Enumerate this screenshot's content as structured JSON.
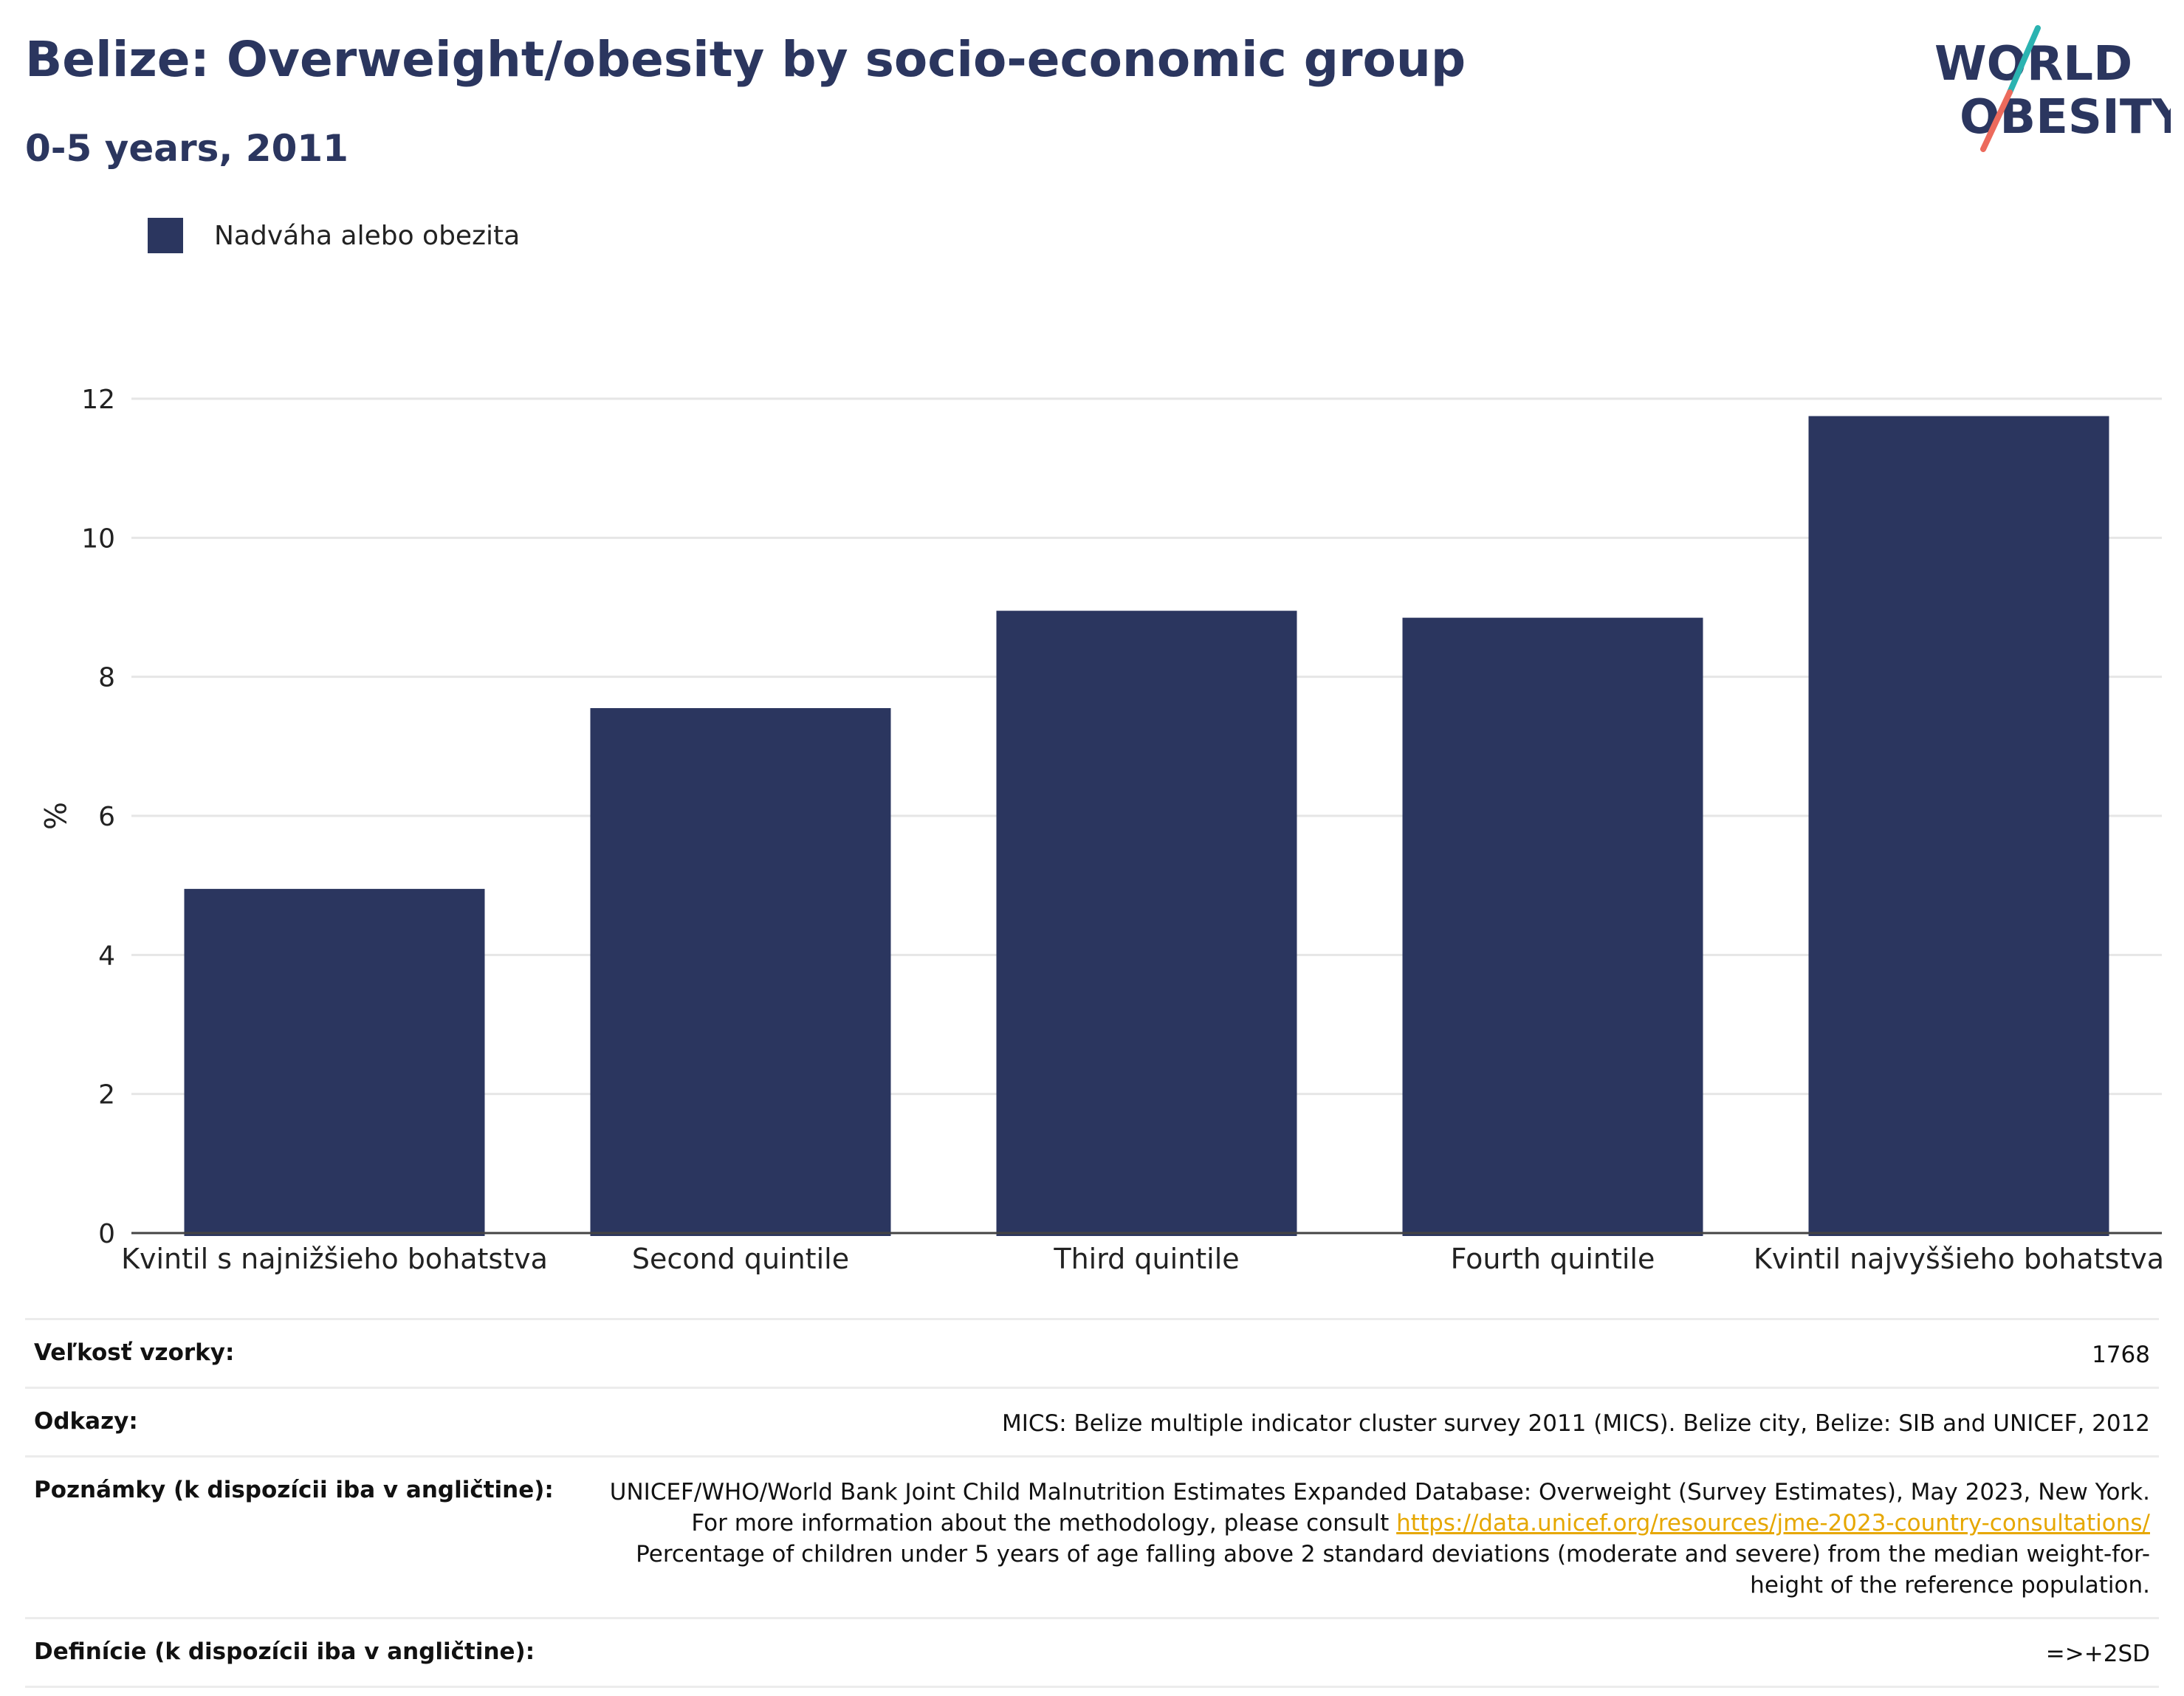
{
  "header": {
    "title": "Belize: Overweight/obesity by socio-economic group",
    "subtitle": "0-5 years, 2011"
  },
  "logo": {
    "line1": "WORLD",
    "line2": "OBESITY"
  },
  "colors": {
    "bar": "#2b365f",
    "title": "#2b365f",
    "grid": "#e6e6e6",
    "link": "#e6a700",
    "logo_teal": "#2bb3b1",
    "logo_coral": "#ec6a5c"
  },
  "chart_data": {
    "type": "bar",
    "title": "Belize: Overweight/obesity by socio-economic group",
    "subtitle": "0-5 years, 2011",
    "categories": [
      "Kvintil s najnižšieho bohatstva",
      "Second quintile",
      "Third quintile",
      "Fourth quintile",
      "Kvintil najvyššieho bohatstva"
    ],
    "series": [
      {
        "name": "Nadváha alebo obezita",
        "values": [
          4.95,
          7.55,
          8.95,
          8.85,
          11.75
        ]
      }
    ],
    "xlabel": "",
    "ylabel": "%",
    "ylim": [
      0,
      12
    ],
    "yticks": [
      0,
      2,
      4,
      6,
      8,
      10,
      12
    ],
    "grid": true,
    "legend": "top-left"
  },
  "meta": {
    "sample_size": {
      "label": "Veľkosť vzorky:",
      "value": "1768"
    },
    "references": {
      "label": "Odkazy:",
      "value": "MICS: Belize multiple indicator cluster survey 2011 (MICS). Belize city, Belize: SIB and UNICEF, 2012"
    },
    "notes": {
      "label": "Poznámky (k dispozícii iba v angličtine):",
      "text1": "UNICEF/WHO/World Bank Joint Child Malnutrition Estimates Expanded Database: Overweight (Survey Estimates), May 2023, New York. For more information about the methodology, please consult ",
      "link": "https://data.unicef.org/resources/jme-2023-country-consultations/",
      "text2": " Percentage of children under 5 years of age falling above 2 standard deviations (moderate and severe) from the median weight-for-height of the reference population."
    },
    "definitions": {
      "label": "Definície (k dispozícii iba v angličtine):",
      "value": "=>+2SD"
    }
  }
}
